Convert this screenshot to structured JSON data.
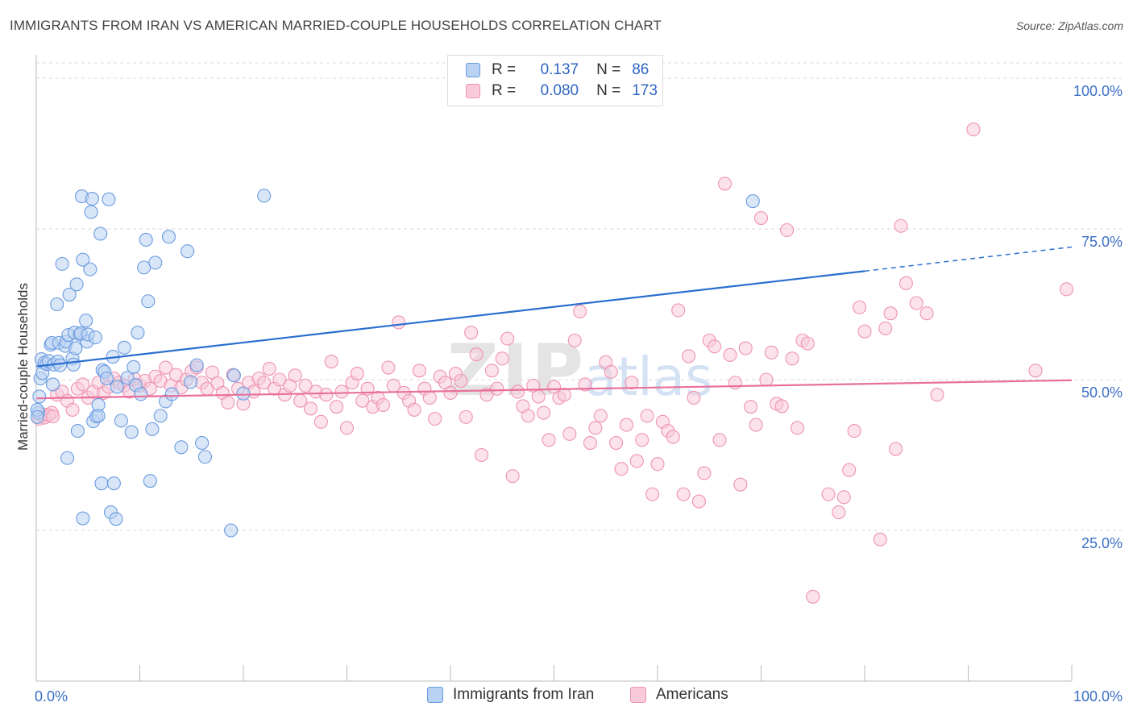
{
  "title": "IMMIGRANTS FROM IRAN VS AMERICAN MARRIED-COUPLE HOUSEHOLDS CORRELATION CHART",
  "source": "Source: ZipAtlas.com",
  "watermark": {
    "zip": "ZIP",
    "atlas": "atlas"
  },
  "colors": {
    "blue_fill": "#b9d2f3",
    "blue_stroke": "#6a9be0",
    "blue_line": "#2a6fcf",
    "pink_fill": "#f8cada",
    "pink_stroke": "#ef93b2",
    "pink_line": "#e8709a",
    "axis_text": "#3b6fc7",
    "grid": "#d8d8d8"
  },
  "legend": {
    "r_label": "R =",
    "n_label": "N =",
    "series1": {
      "r": "0.137",
      "n": "86"
    },
    "series2": {
      "r": "0.080",
      "n": "173"
    }
  },
  "chart_data": {
    "type": "scatter",
    "title": "IMMIGRANTS FROM IRAN VS AMERICAN MARRIED-COUPLE HOUSEHOLDS CORRELATION CHART",
    "xlabel": "Immigrants from Iran",
    "ylabel": "Married-couple Households",
    "xlim": [
      0,
      100
    ],
    "ylim": [
      0,
      105
    ],
    "x_tick_labels": [
      "0.0%",
      "100.0%"
    ],
    "y_ticks": [
      25,
      50,
      75,
      100
    ],
    "y_tick_labels": [
      "25.0%",
      "50.0%",
      "75.0%",
      "100.0%"
    ],
    "series": [
      {
        "name": "Immigrants from Iran",
        "r": 0.137,
        "n": 86,
        "trend": {
          "x0": 0,
          "y0": 52.2,
          "x1": 80,
          "y1": 68.0,
          "dash_x1": 100,
          "dash_y1": 72.0
        },
        "points": [
          [
            0.3,
            47.2
          ],
          [
            0.4,
            50.2
          ],
          [
            0.5,
            53.4
          ],
          [
            0.6,
            51.1
          ],
          [
            0.8,
            52.8
          ],
          [
            1.0,
            52.6
          ],
          [
            1.2,
            53.1
          ],
          [
            1.4,
            55.8
          ],
          [
            1.5,
            56.1
          ],
          [
            1.6,
            49.2
          ],
          [
            1.7,
            52.5
          ],
          [
            2.0,
            62.5
          ],
          [
            2.1,
            53.0
          ],
          [
            2.2,
            56.1
          ],
          [
            2.3,
            52.4
          ],
          [
            2.5,
            69.2
          ],
          [
            2.8,
            55.6
          ],
          [
            2.9,
            56.3
          ],
          [
            3.0,
            37.0
          ],
          [
            3.1,
            57.4
          ],
          [
            3.2,
            64.1
          ],
          [
            3.5,
            53.5
          ],
          [
            3.6,
            52.5
          ],
          [
            3.7,
            57.8
          ],
          [
            3.8,
            55.2
          ],
          [
            3.9,
            65.8
          ],
          [
            4.0,
            41.5
          ],
          [
            4.2,
            57.5
          ],
          [
            4.3,
            57.7
          ],
          [
            4.4,
            80.4
          ],
          [
            4.5,
            27.0
          ],
          [
            4.5,
            69.9
          ],
          [
            4.8,
            59.8
          ],
          [
            4.9,
            56.3
          ],
          [
            5.0,
            57.5
          ],
          [
            5.2,
            68.3
          ],
          [
            5.3,
            77.8
          ],
          [
            5.4,
            80.0
          ],
          [
            5.5,
            43.1
          ],
          [
            5.7,
            57.0
          ],
          [
            5.8,
            43.9
          ],
          [
            6.0,
            45.8
          ],
          [
            6.0,
            44.0
          ],
          [
            6.2,
            74.2
          ],
          [
            6.3,
            32.8
          ],
          [
            6.4,
            51.6
          ],
          [
            6.6,
            51.3
          ],
          [
            6.8,
            50.2
          ],
          [
            7.0,
            79.9
          ],
          [
            7.2,
            28.0
          ],
          [
            7.4,
            53.8
          ],
          [
            7.5,
            32.8
          ],
          [
            7.7,
            26.9
          ],
          [
            7.8,
            48.8
          ],
          [
            8.2,
            43.2
          ],
          [
            8.5,
            55.3
          ],
          [
            8.8,
            50.3
          ],
          [
            9.2,
            41.3
          ],
          [
            9.4,
            52.1
          ],
          [
            9.6,
            49.1
          ],
          [
            9.8,
            57.8
          ],
          [
            10.1,
            47.6
          ],
          [
            10.4,
            68.6
          ],
          [
            10.6,
            73.2
          ],
          [
            10.8,
            63.0
          ],
          [
            11.0,
            33.2
          ],
          [
            11.2,
            41.8
          ],
          [
            11.5,
            69.4
          ],
          [
            12.0,
            44.0
          ],
          [
            12.5,
            46.4
          ],
          [
            12.8,
            73.7
          ],
          [
            13.1,
            47.6
          ],
          [
            14.0,
            38.8
          ],
          [
            14.6,
            71.3
          ],
          [
            14.9,
            49.6
          ],
          [
            15.5,
            52.4
          ],
          [
            16.0,
            39.5
          ],
          [
            16.3,
            37.2
          ],
          [
            18.8,
            25.0
          ],
          [
            19.1,
            50.7
          ],
          [
            20.0,
            47.7
          ],
          [
            22.0,
            80.5
          ],
          [
            69.2,
            79.6
          ],
          [
            0.2,
            44.5
          ],
          [
            0.1,
            45.0
          ],
          [
            0.1,
            43.8
          ]
        ]
      },
      {
        "name": "Americans",
        "r": 0.08,
        "n": 173,
        "trend": {
          "x0": 0,
          "y0": 46.9,
          "x1": 100,
          "y1": 49.9
        },
        "points": [
          [
            0.3,
            43.5
          ],
          [
            0.8,
            44.2
          ],
          [
            1.5,
            44.5
          ],
          [
            2.0,
            47.5
          ],
          [
            2.5,
            48.0
          ],
          [
            3.0,
            46.5
          ],
          [
            3.5,
            45.0
          ],
          [
            4.0,
            48.5
          ],
          [
            4.5,
            49.2
          ],
          [
            5.0,
            47.0
          ],
          [
            5.5,
            48.0
          ],
          [
            6.0,
            49.5
          ],
          [
            6.5,
            47.8
          ],
          [
            7.0,
            48.8
          ],
          [
            7.5,
            50.2
          ],
          [
            8.0,
            49.5
          ],
          [
            8.5,
            49.0
          ],
          [
            9.0,
            48.0
          ],
          [
            9.5,
            50.1
          ],
          [
            10.0,
            49.0
          ],
          [
            10.5,
            49.8
          ],
          [
            11.0,
            48.5
          ],
          [
            11.5,
            50.5
          ],
          [
            12.0,
            49.8
          ],
          [
            12.5,
            52.0
          ],
          [
            13.0,
            49.0
          ],
          [
            13.5,
            50.8
          ],
          [
            14.0,
            48.7
          ],
          [
            14.5,
            50.0
          ],
          [
            15.0,
            51.4
          ],
          [
            15.5,
            52.0
          ],
          [
            16.0,
            49.5
          ],
          [
            16.5,
            48.5
          ],
          [
            17.0,
            51.2
          ],
          [
            17.5,
            49.4
          ],
          [
            18.0,
            47.8
          ],
          [
            18.5,
            46.2
          ],
          [
            19.0,
            50.8
          ],
          [
            19.5,
            48.5
          ],
          [
            20.0,
            46.0
          ],
          [
            20.5,
            49.5
          ],
          [
            21.0,
            48.0
          ],
          [
            21.5,
            50.2
          ],
          [
            22.0,
            49.5
          ],
          [
            22.5,
            51.8
          ],
          [
            23.0,
            48.5
          ],
          [
            23.5,
            50.0
          ],
          [
            24.0,
            47.5
          ],
          [
            24.5,
            49.0
          ],
          [
            25.0,
            50.7
          ],
          [
            25.5,
            46.5
          ],
          [
            26.0,
            49.0
          ],
          [
            26.5,
            45.2
          ],
          [
            27.0,
            48.0
          ],
          [
            27.5,
            43.0
          ],
          [
            28.0,
            47.5
          ],
          [
            28.5,
            53.0
          ],
          [
            29.0,
            45.5
          ],
          [
            29.5,
            48.0
          ],
          [
            30.0,
            42.0
          ],
          [
            30.5,
            49.5
          ],
          [
            31.0,
            51.0
          ],
          [
            31.5,
            46.5
          ],
          [
            32.0,
            48.5
          ],
          [
            32.5,
            45.5
          ],
          [
            33.0,
            47.0
          ],
          [
            33.5,
            45.8
          ],
          [
            34.0,
            52.0
          ],
          [
            34.5,
            49.0
          ],
          [
            35.0,
            59.5
          ],
          [
            35.5,
            47.8
          ],
          [
            36.0,
            46.5
          ],
          [
            36.5,
            45.0
          ],
          [
            37.0,
            51.5
          ],
          [
            37.5,
            48.5
          ],
          [
            38.0,
            47.0
          ],
          [
            38.5,
            43.5
          ],
          [
            39.0,
            50.5
          ],
          [
            39.5,
            49.5
          ],
          [
            40.0,
            47.8
          ],
          [
            40.5,
            51.0
          ],
          [
            41.0,
            49.8
          ],
          [
            41.5,
            43.8
          ],
          [
            42.0,
            57.8
          ],
          [
            42.5,
            54.2
          ],
          [
            43.0,
            37.5
          ],
          [
            43.5,
            47.5
          ],
          [
            44.0,
            51.5
          ],
          [
            44.5,
            48.5
          ],
          [
            45.0,
            53.5
          ],
          [
            45.5,
            56.8
          ],
          [
            46.0,
            34.0
          ],
          [
            46.5,
            48.0
          ],
          [
            47.0,
            45.6
          ],
          [
            47.5,
            44.0
          ],
          [
            48.0,
            49.0
          ],
          [
            48.5,
            47.2
          ],
          [
            49.0,
            44.5
          ],
          [
            49.5,
            40.0
          ],
          [
            50.0,
            48.8
          ],
          [
            50.5,
            47.0
          ],
          [
            51.0,
            47.5
          ],
          [
            51.5,
            41.0
          ],
          [
            52.0,
            56.5
          ],
          [
            52.5,
            61.3
          ],
          [
            53.0,
            49.2
          ],
          [
            53.5,
            39.5
          ],
          [
            54.0,
            42.0
          ],
          [
            54.5,
            44.0
          ],
          [
            55.0,
            52.9
          ],
          [
            55.5,
            51.3
          ],
          [
            56.0,
            39.5
          ],
          [
            56.5,
            35.2
          ],
          [
            57.0,
            42.5
          ],
          [
            57.5,
            49.5
          ],
          [
            58.0,
            36.5
          ],
          [
            58.5,
            40.0
          ],
          [
            59.0,
            44.0
          ],
          [
            59.5,
            31.0
          ],
          [
            60.0,
            36.0
          ],
          [
            60.5,
            43.0
          ],
          [
            61.0,
            41.5
          ],
          [
            61.5,
            40.5
          ],
          [
            62.0,
            61.5
          ],
          [
            62.5,
            31.0
          ],
          [
            63.0,
            53.9
          ],
          [
            63.5,
            47.0
          ],
          [
            64.0,
            29.8
          ],
          [
            64.5,
            34.5
          ],
          [
            65.0,
            56.5
          ],
          [
            65.5,
            55.5
          ],
          [
            66.0,
            40.0
          ],
          [
            66.5,
            82.5
          ],
          [
            67.0,
            54.1
          ],
          [
            67.5,
            49.5
          ],
          [
            68.0,
            32.6
          ],
          [
            68.5,
            55.2
          ],
          [
            69.0,
            45.5
          ],
          [
            69.5,
            42.5
          ],
          [
            70.0,
            76.8
          ],
          [
            70.5,
            50.0
          ],
          [
            71.0,
            54.5
          ],
          [
            71.5,
            46.0
          ],
          [
            72.0,
            45.6
          ],
          [
            72.5,
            74.8
          ],
          [
            73.0,
            53.5
          ],
          [
            73.5,
            42.0
          ],
          [
            74.0,
            56.5
          ],
          [
            74.5,
            56.0
          ],
          [
            75.0,
            14.0
          ],
          [
            76.5,
            31.0
          ],
          [
            77.5,
            28.0
          ],
          [
            78.0,
            30.5
          ],
          [
            78.5,
            35.0
          ],
          [
            79.0,
            41.5
          ],
          [
            79.5,
            62.0
          ],
          [
            80.0,
            58.0
          ],
          [
            81.5,
            23.5
          ],
          [
            82.0,
            58.5
          ],
          [
            82.5,
            61.0
          ],
          [
            83.0,
            38.5
          ],
          [
            83.5,
            75.5
          ],
          [
            84.0,
            66.0
          ],
          [
            85.0,
            62.7
          ],
          [
            86.0,
            61.0
          ],
          [
            87.0,
            47.5
          ],
          [
            90.5,
            91.5
          ],
          [
            96.5,
            51.5
          ],
          [
            99.5,
            65.0
          ],
          [
            0.8,
            43.7
          ],
          [
            1.2,
            44.1
          ],
          [
            1.6,
            43.9
          ]
        ]
      }
    ]
  }
}
